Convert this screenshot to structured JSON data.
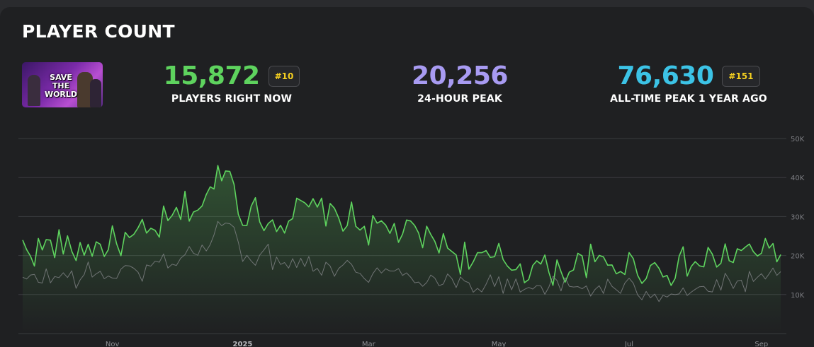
{
  "card": {
    "title": "PLAYER COUNT"
  },
  "game": {
    "thumbnail_text": "SAVE THE WORLD"
  },
  "stats": [
    {
      "value": "15,872",
      "label": "PLAYERS RIGHT NOW",
      "rank": "#10",
      "color": "#5ed35e"
    },
    {
      "value": "20,256",
      "label": "24-HOUR PEAK",
      "rank": null,
      "color": "#a89bf2"
    },
    {
      "value": "76,630",
      "label": "ALL-TIME PEAK 1 YEAR AGO",
      "rank": "#151",
      "color": "#3cc3e6"
    }
  ],
  "chart_data": {
    "type": "line",
    "y_ticks": [
      "10K",
      "20K",
      "30K",
      "40K",
      "50K"
    ],
    "y_min": 0,
    "y_max": 50000,
    "x_ticks": [
      {
        "label": "Nov",
        "bold": false
      },
      {
        "label": "2025",
        "bold": true
      },
      {
        "label": "Mar",
        "bold": false
      },
      {
        "label": "May",
        "bold": false
      },
      {
        "label": "Jul",
        "bold": false
      },
      {
        "label": "Sep",
        "bold": false
      }
    ],
    "x_tick_dates": [
      "2024-11-01",
      "2025-01-01",
      "2025-03-01",
      "2025-05-01",
      "2025-07-01",
      "2025-09-01"
    ],
    "grid": true,
    "series": [
      {
        "color": "#5ed35e",
        "fill": true,
        "points": [
          [
            "2024-09-20",
            21000
          ],
          [
            "2024-10-01",
            22000
          ],
          [
            "2024-10-15",
            21500
          ],
          [
            "2024-11-01",
            22000
          ],
          [
            "2024-11-15",
            24000
          ],
          [
            "2024-11-25",
            27000
          ],
          [
            "2024-12-05",
            31000
          ],
          [
            "2024-12-15",
            33000
          ],
          [
            "2024-12-24",
            44000
          ],
          [
            "2025-01-01",
            31000
          ],
          [
            "2025-01-15",
            28000
          ],
          [
            "2025-02-01",
            32000
          ],
          [
            "2025-02-15",
            29000
          ],
          [
            "2025-03-01",
            27000
          ],
          [
            "2025-03-15",
            26000
          ],
          [
            "2025-04-01",
            24000
          ],
          [
            "2025-04-15",
            19000
          ],
          [
            "2025-05-01",
            18000
          ],
          [
            "2025-05-15",
            17000
          ],
          [
            "2025-06-01",
            16500
          ],
          [
            "2025-06-15",
            17500
          ],
          [
            "2025-07-01",
            17000
          ],
          [
            "2025-07-15",
            16000
          ],
          [
            "2025-08-01",
            17000
          ],
          [
            "2025-08-15",
            19000
          ],
          [
            "2025-09-01",
            21000
          ],
          [
            "2025-09-10",
            20256
          ]
        ]
      },
      {
        "color": "#8a8b8f",
        "fill": false,
        "points": [
          [
            "2024-09-20",
            13000
          ],
          [
            "2024-10-01",
            14000
          ],
          [
            "2024-10-15",
            14500
          ],
          [
            "2024-11-01",
            15000
          ],
          [
            "2024-11-15",
            16000
          ],
          [
            "2024-11-25",
            18000
          ],
          [
            "2024-12-05",
            20000
          ],
          [
            "2024-12-15",
            22000
          ],
          [
            "2024-12-24",
            29000
          ],
          [
            "2025-01-01",
            21000
          ],
          [
            "2025-01-15",
            19000
          ],
          [
            "2025-02-01",
            18000
          ],
          [
            "2025-02-15",
            17000
          ],
          [
            "2025-03-01",
            16000
          ],
          [
            "2025-03-15",
            15000
          ],
          [
            "2025-04-01",
            14000
          ],
          [
            "2025-04-15",
            12500
          ],
          [
            "2025-05-01",
            12000
          ],
          [
            "2025-05-15",
            12000
          ],
          [
            "2025-06-01",
            11500
          ],
          [
            "2025-06-15",
            11500
          ],
          [
            "2025-07-01",
            11000
          ],
          [
            "2025-07-15",
            10500
          ],
          [
            "2025-08-01",
            11000
          ],
          [
            "2025-08-15",
            12000
          ],
          [
            "2025-09-01",
            12500
          ],
          [
            "2025-09-10",
            15872
          ]
        ]
      }
    ]
  }
}
